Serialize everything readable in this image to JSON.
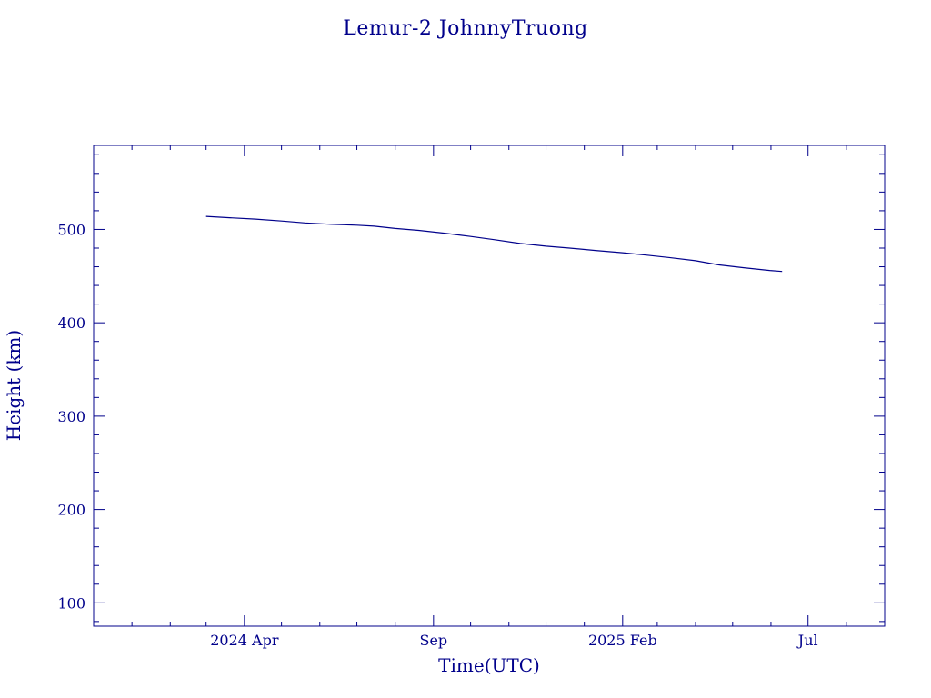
{
  "chart_data": {
    "type": "line",
    "title": "Lemur-2 JohnnyTruong",
    "xlabel": "Time(UTC)",
    "ylabel": "Height (km)",
    "x_range": [
      "2023-12-01",
      "2025-09-01"
    ],
    "ylim": [
      75,
      590
    ],
    "grid": false,
    "x_tick_labels": [
      {
        "date": "2024-04-01",
        "label": "2024 Apr"
      },
      {
        "date": "2024-09-01",
        "label": "Sep"
      },
      {
        "date": "2025-02-01",
        "label": "2025 Feb"
      },
      {
        "date": "2025-07-01",
        "label": "Jul"
      }
    ],
    "x_minor_ticks": [
      "2024-01-01",
      "2024-02-01",
      "2024-03-01",
      "2024-05-01",
      "2024-06-01",
      "2024-07-01",
      "2024-08-01",
      "2024-10-01",
      "2024-11-01",
      "2024-12-01",
      "2025-01-01",
      "2025-03-01",
      "2025-04-01",
      "2025-05-01",
      "2025-06-01",
      "2025-08-01"
    ],
    "y_tick_labels": [
      {
        "value": 100,
        "label": "100"
      },
      {
        "value": 200,
        "label": "200"
      },
      {
        "value": 300,
        "label": "300"
      },
      {
        "value": 400,
        "label": "400"
      },
      {
        "value": 500,
        "label": "500"
      }
    ],
    "y_minor_step": 20,
    "series": [
      {
        "color": "#00008b",
        "points": [
          {
            "x": "2024-03-01",
            "y": 514
          },
          {
            "x": "2024-03-20",
            "y": 512.5
          },
          {
            "x": "2024-04-10",
            "y": 511
          },
          {
            "x": "2024-05-01",
            "y": 509
          },
          {
            "x": "2024-05-20",
            "y": 507
          },
          {
            "x": "2024-06-10",
            "y": 505.5
          },
          {
            "x": "2024-07-01",
            "y": 504.5
          },
          {
            "x": "2024-07-15",
            "y": 503.5
          },
          {
            "x": "2024-08-01",
            "y": 501
          },
          {
            "x": "2024-08-20",
            "y": 499
          },
          {
            "x": "2024-09-10",
            "y": 496
          },
          {
            "x": "2024-10-01",
            "y": 492.5
          },
          {
            "x": "2024-10-20",
            "y": 489
          },
          {
            "x": "2024-11-10",
            "y": 485
          },
          {
            "x": "2024-12-01",
            "y": 482
          },
          {
            "x": "2024-12-20",
            "y": 480
          },
          {
            "x": "2025-01-10",
            "y": 477.5
          },
          {
            "x": "2025-02-01",
            "y": 475
          },
          {
            "x": "2025-02-20",
            "y": 472.5
          },
          {
            "x": "2025-03-10",
            "y": 470
          },
          {
            "x": "2025-04-01",
            "y": 466.5
          },
          {
            "x": "2025-04-20",
            "y": 462
          },
          {
            "x": "2025-05-10",
            "y": 459
          },
          {
            "x": "2025-05-31",
            "y": 456
          },
          {
            "x": "2025-06-10",
            "y": 455
          }
        ]
      }
    ]
  },
  "colors": {
    "axis": "#00008b",
    "text": "#00008b",
    "background": "#ffffff"
  }
}
